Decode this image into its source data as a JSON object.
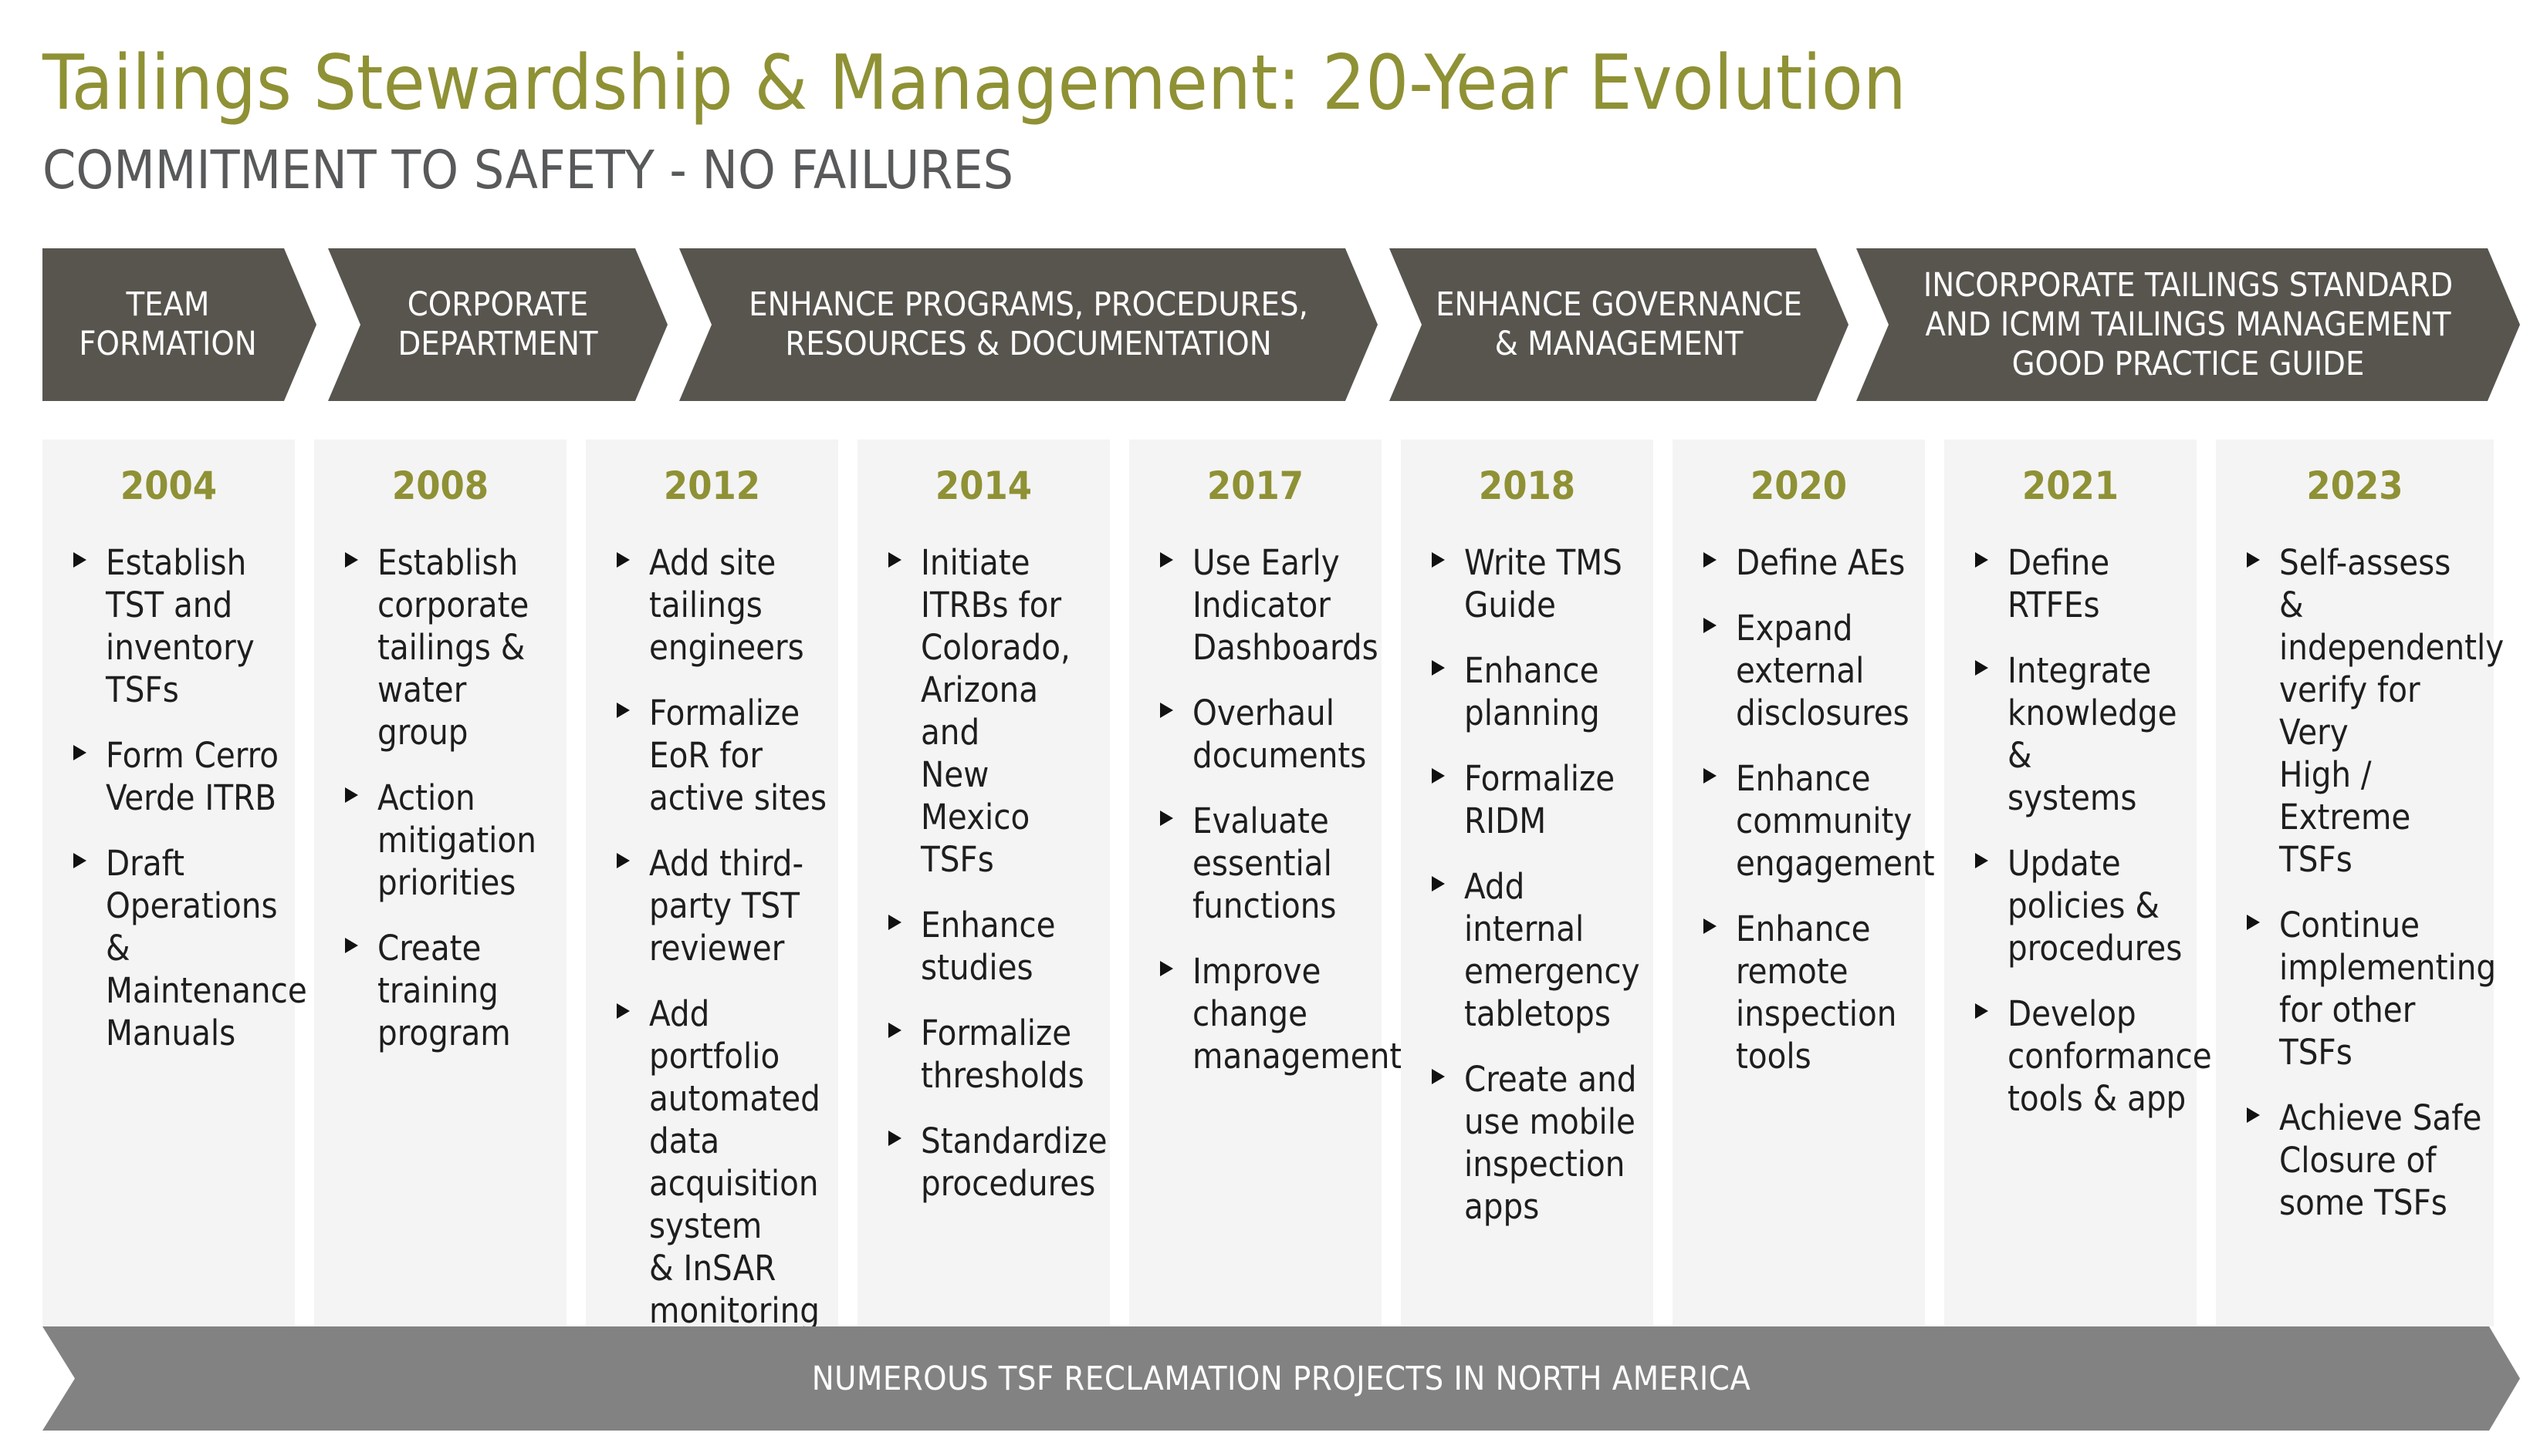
{
  "title": "Tailings Stewardship & Management: 20-Year Evolution",
  "subtitle": "COMMITMENT TO SAFETY - NO FAILURES",
  "phases": [
    {
      "label": "TEAM\nFORMATION"
    },
    {
      "label": "CORPORATE\nDEPARTMENT"
    },
    {
      "label": "ENHANCE PROGRAMS, PROCEDURES,\nRESOURCES & DOCUMENTATION"
    },
    {
      "label": "ENHANCE GOVERNANCE\n& MANAGEMENT"
    },
    {
      "label": "INCORPORATE TAILINGS STANDARD\nAND ICMM TAILINGS MANAGEMENT\nGOOD PRACTICE GUIDE"
    }
  ],
  "timeline": [
    {
      "year": "2004",
      "items": [
        "Establish\nTST and\ninventory\nTSFs",
        "Form Cerro\nVerde ITRB",
        "Draft\nOperations &\nMaintenance\nManuals"
      ]
    },
    {
      "year": "2008",
      "items": [
        "Establish\ncorporate\ntailings &\nwater group",
        "Action\nmitigation\npriorities",
        "Create\ntraining\nprogram"
      ]
    },
    {
      "year": "2012",
      "items": [
        "Add site\ntailings\nengineers",
        "Formalize\nEoR for\nactive sites",
        "Add third-\nparty TST\nreviewer",
        "Add portfolio\nautomated\ndata\nacquisition\nsystem\n& InSAR\nmonitoring"
      ]
    },
    {
      "year": "2014",
      "items": [
        "Initiate\nITRBs for\nColorado,\nArizona and\nNew Mexico\nTSFs",
        "Enhance\nstudies",
        "Formalize\nthresholds",
        "Standardize\nprocedures"
      ]
    },
    {
      "year": "2017",
      "items": [
        "Use Early\nIndicator\nDashboards",
        "Overhaul\ndocuments",
        "Evaluate\nessential\nfunctions",
        "Improve\nchange\nmanagement"
      ]
    },
    {
      "year": "2018",
      "items": [
        "Write TMS\nGuide",
        "Enhance\nplanning",
        "Formalize\nRIDM",
        "Add internal\nemergency\ntabletops",
        "Create and\nuse mobile\ninspection\napps"
      ]
    },
    {
      "year": "2020",
      "items": [
        "Define AEs",
        "Expand\nexternal\ndisclosures",
        "Enhance\ncommunity\nengagement",
        "Enhance\nremote\ninspection\ntools"
      ]
    },
    {
      "year": "2021",
      "items": [
        "Define RTFEs",
        "Integrate\nknowledge &\nsystems",
        "Update\npolicies &\nprocedures",
        "Develop\nconformance\ntools & app"
      ]
    },
    {
      "year": "2023",
      "items": [
        "Self-assess &\nindependently\nverify for Very\nHigh / Extreme\nTSFs",
        "Continue\nimplementing\nfor other TSFs",
        "Achieve Safe\nClosure of\nsome TSFs"
      ]
    }
  ],
  "banner": "NUMEROUS TSF RECLAMATION PROJECTS IN NORTH AMERICA",
  "colors": {
    "accent": "#8f9135",
    "chevron": "#58554f",
    "banner": "#828282",
    "column": "#f4f4f4"
  }
}
